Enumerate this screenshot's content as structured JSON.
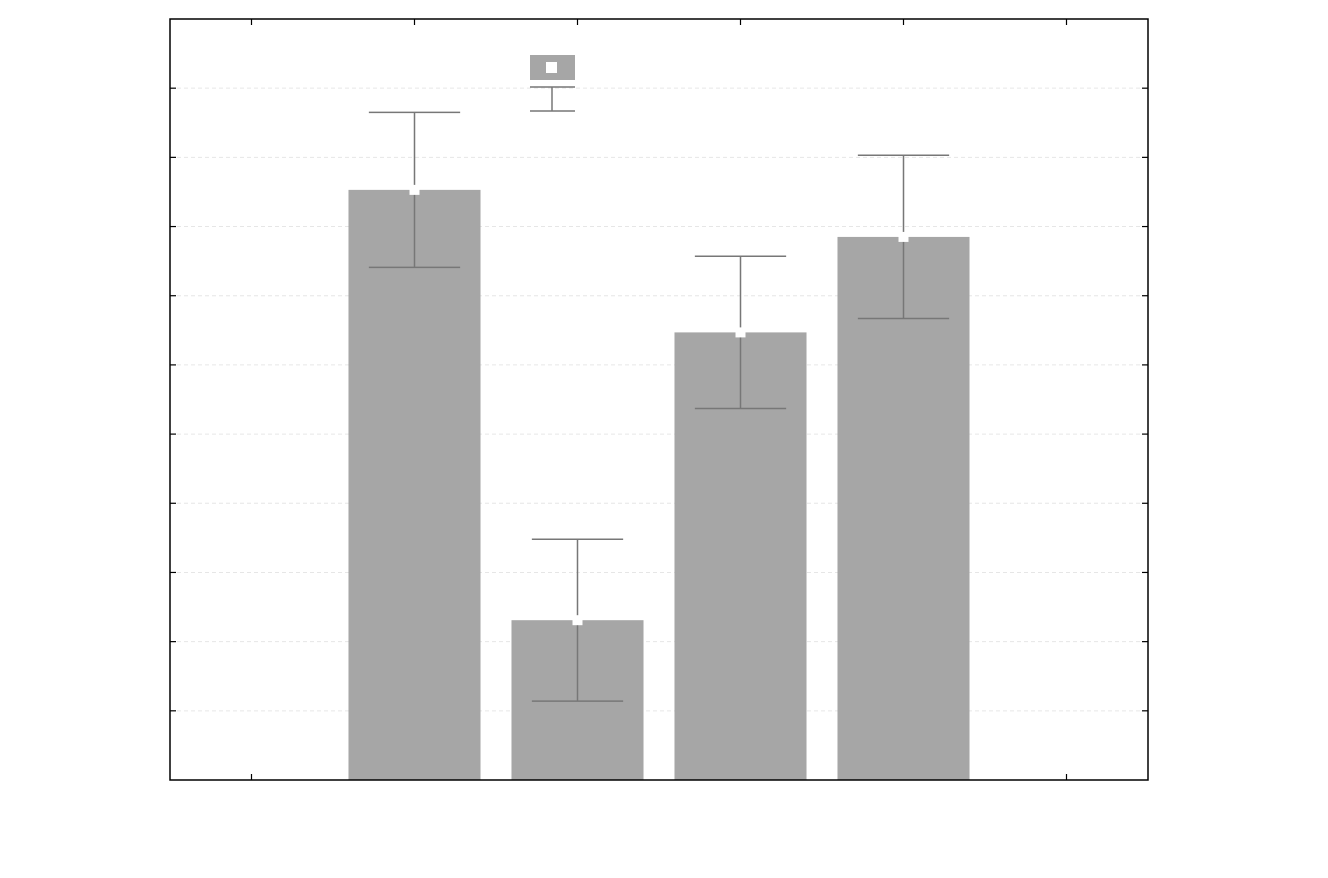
{
  "chart_data": {
    "type": "bar",
    "x": [
      1.5,
      2.5,
      3.5,
      4.5
    ],
    "series": [
      {
        "color": "#a6a6a6",
        "values": [
          8.53,
          2.31,
          6.47,
          7.85
        ],
        "errors": [
          1.12,
          1.17,
          1.1,
          1.18
        ]
      }
    ],
    "xlim": [
      0,
      6
    ],
    "xticks": [
      0.5,
      1.5,
      2.5,
      3.5,
      4.5,
      5.5
    ],
    "ylim": [
      0,
      11
    ],
    "yticks": [
      1,
      2,
      3,
      4,
      5,
      6,
      7,
      8,
      9,
      10
    ],
    "grid": true
  }
}
